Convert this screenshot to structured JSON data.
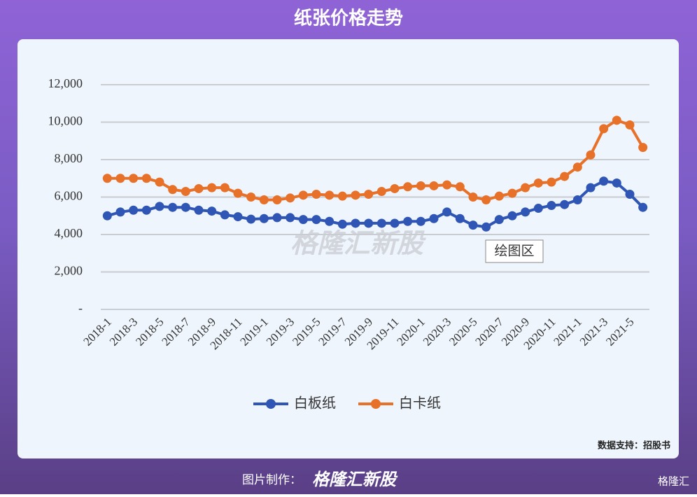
{
  "chart_data": {
    "type": "line",
    "title": "纸张价格走势",
    "categories": [
      "2018-1",
      null,
      "2018-3",
      null,
      "2018-5",
      null,
      "2018-7",
      null,
      "2018-9",
      null,
      "2018-11",
      null,
      "2019-1",
      null,
      "2019-3",
      null,
      "2019-5",
      null,
      "2019-7",
      null,
      "2019-9",
      null,
      "2019-11",
      null,
      "2020-1",
      null,
      "2020-3",
      null,
      "2020-5",
      null,
      "2020-7",
      null,
      "2020-9",
      null,
      "2020-11",
      null,
      "2021-1",
      null,
      "2021-3",
      null,
      "2021-5",
      null
    ],
    "series": [
      {
        "name": "白板纸",
        "color": "#2f55b5",
        "values": [
          5000,
          5200,
          5300,
          5300,
          5500,
          5450,
          5450,
          5300,
          5250,
          5050,
          4950,
          4820,
          4850,
          4900,
          4900,
          4800,
          4800,
          4700,
          4550,
          4600,
          4600,
          4600,
          4600,
          4700,
          4700,
          4850,
          5200,
          4850,
          4500,
          4400,
          4800,
          5000,
          5200,
          5400,
          5550,
          5600,
          5850,
          6500,
          6850,
          6750,
          6150,
          5450
        ]
      },
      {
        "name": "白卡纸",
        "color": "#e8712a",
        "values": [
          7000,
          7000,
          7000,
          7000,
          6800,
          6400,
          6300,
          6450,
          6500,
          6500,
          6200,
          6000,
          5850,
          5850,
          5950,
          6100,
          6150,
          6100,
          6050,
          6100,
          6150,
          6300,
          6450,
          6550,
          6600,
          6600,
          6650,
          6550,
          6000,
          5850,
          6050,
          6200,
          6500,
          6750,
          6800,
          7100,
          7600,
          8250,
          9650,
          10100,
          9850,
          8650
        ]
      }
    ],
    "ylim": [
      0,
      12000
    ],
    "yticks": [
      {
        "value": 0,
        "label": "-"
      },
      {
        "value": 2000,
        "label": "2,000"
      },
      {
        "value": 4000,
        "label": "4,000"
      },
      {
        "value": 6000,
        "label": "6,000"
      },
      {
        "value": 8000,
        "label": "8,000"
      },
      {
        "value": 10000,
        "label": "10,000"
      },
      {
        "value": 12000,
        "label": "12,000"
      }
    ],
    "grid": true,
    "legend": "bottom",
    "watermark": "格隆汇新股",
    "tooltip": "绘图区",
    "source": "数据支持：招股书"
  },
  "footer": {
    "credit": "图片制作：",
    "brand": "格隆汇新股",
    "logo": "格隆汇"
  }
}
